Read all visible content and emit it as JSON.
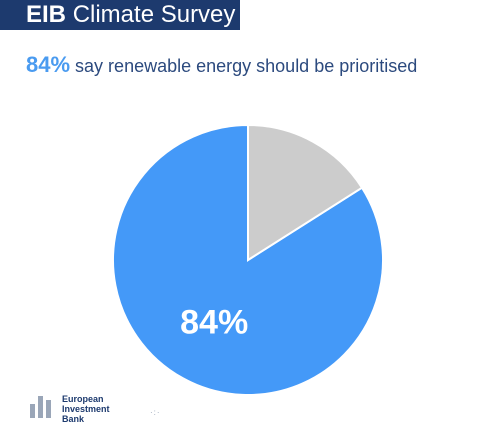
{
  "header": {
    "brand": "EIB",
    "title": "Climate Survey"
  },
  "headline": {
    "percent": "84%",
    "text": " say renewable energy should be prioritised"
  },
  "colors": {
    "primary": "#4499f8",
    "secondary": "#cccccc",
    "brand_dark": "#1d3a6e"
  },
  "logo": {
    "line1": "European",
    "line2": "Investment",
    "line3": "Bank"
  },
  "chart_data": {
    "type": "pie",
    "slices": [
      {
        "value": 84,
        "color": "#4499f8",
        "label": "84%"
      },
      {
        "value": 16,
        "color": "#cccccc",
        "label": ""
      }
    ]
  }
}
